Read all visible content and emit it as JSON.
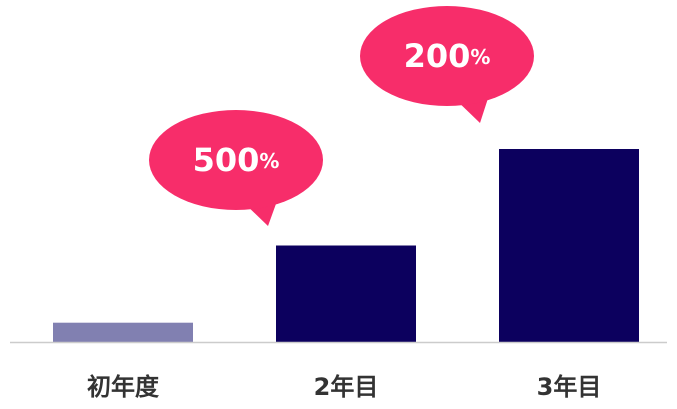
{
  "chart_data": {
    "type": "bar",
    "categories": [
      "初年度",
      "2年目",
      "3年目"
    ],
    "values": [
      1,
      5,
      10
    ],
    "colors": [
      "#8180b1",
      "#0c005e",
      "#0c005e"
    ],
    "ylim": [
      0,
      10
    ],
    "annotations": [
      {
        "number": "500",
        "unit": "%",
        "color": "#f72d6a"
      },
      {
        "number": "200",
        "unit": "%",
        "color": "#f72d6a"
      }
    ]
  }
}
